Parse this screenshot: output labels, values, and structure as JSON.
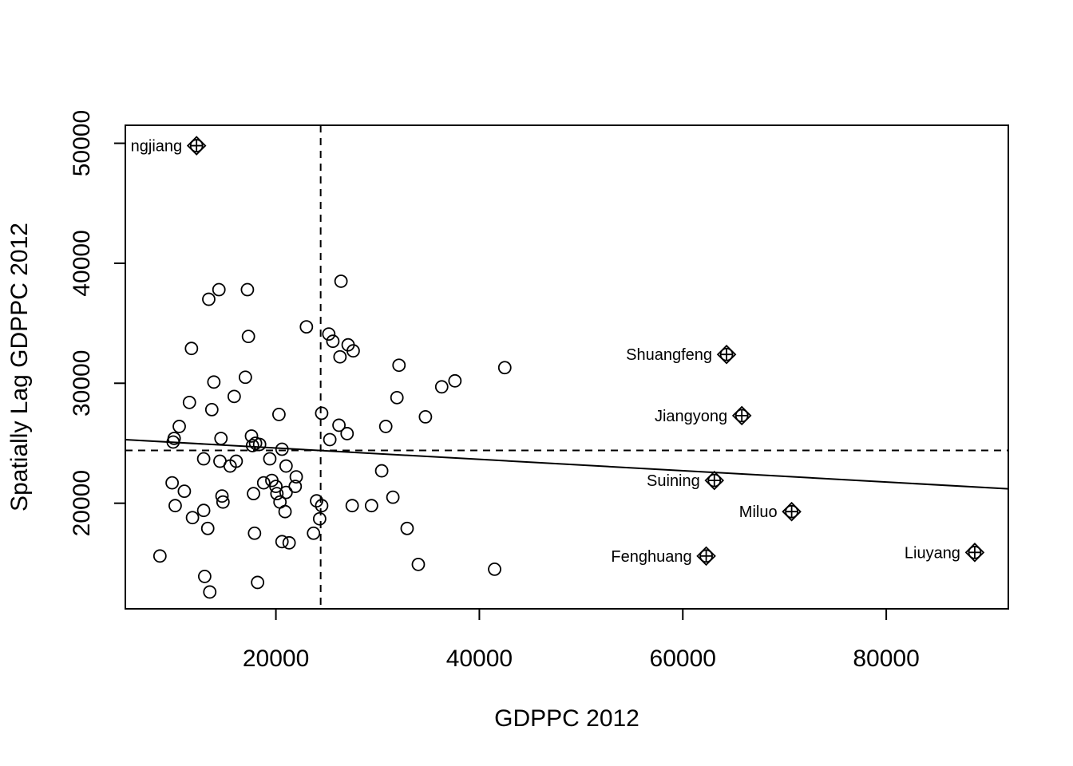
{
  "chart_data": {
    "type": "scatter",
    "xlabel": "GDPPC 2012",
    "ylabel": "Spatially Lag GDPPC 2012",
    "xlim": [
      5200,
      92000
    ],
    "ylim": [
      11200,
      51500
    ],
    "xticks": [
      20000,
      40000,
      60000,
      80000
    ],
    "yticks": [
      20000,
      30000,
      40000,
      50000
    ],
    "xtick_labels": [
      "20000",
      "40000",
      "60000",
      "80000"
    ],
    "ytick_labels": [
      "20000",
      "30000",
      "40000",
      "50000"
    ],
    "grid": false,
    "mean_x": 24400,
    "mean_y": 24400,
    "regression_line": {
      "x": [
        5200,
        92000
      ],
      "y": [
        25300,
        21200
      ]
    },
    "points": [
      [
        8600,
        15600
      ],
      [
        9800,
        21700
      ],
      [
        9900,
        25100
      ],
      [
        10000,
        25400
      ],
      [
        10100,
        19800
      ],
      [
        10500,
        26400
      ],
      [
        11000,
        21000
      ],
      [
        11500,
        28400
      ],
      [
        11700,
        32900
      ],
      [
        11800,
        18800
      ],
      [
        12900,
        23700
      ],
      [
        12900,
        19400
      ],
      [
        13000,
        13900
      ],
      [
        13300,
        17900
      ],
      [
        13400,
        37000
      ],
      [
        13500,
        12600
      ],
      [
        13700,
        27800
      ],
      [
        13900,
        30100
      ],
      [
        14400,
        37800
      ],
      [
        14500,
        23500
      ],
      [
        14600,
        25400
      ],
      [
        14700,
        20600
      ],
      [
        14800,
        20100
      ],
      [
        15500,
        23100
      ],
      [
        15900,
        28900
      ],
      [
        16100,
        23500
      ],
      [
        17000,
        30500
      ],
      [
        17200,
        37800
      ],
      [
        17300,
        33900
      ],
      [
        17600,
        25600
      ],
      [
        17700,
        24800
      ],
      [
        17800,
        20800
      ],
      [
        17900,
        17500
      ],
      [
        18000,
        25000
      ],
      [
        18200,
        13400
      ],
      [
        18400,
        24900
      ],
      [
        18800,
        21700
      ],
      [
        19400,
        23700
      ],
      [
        19600,
        21900
      ],
      [
        20000,
        21400
      ],
      [
        20100,
        20800
      ],
      [
        20300,
        27400
      ],
      [
        20400,
        20100
      ],
      [
        20600,
        24500
      ],
      [
        20600,
        16800
      ],
      [
        20900,
        19300
      ],
      [
        21000,
        20900
      ],
      [
        21000,
        23100
      ],
      [
        21300,
        16700
      ],
      [
        21900,
        21400
      ],
      [
        22000,
        22200
      ],
      [
        23000,
        34700
      ],
      [
        23700,
        17500
      ],
      [
        24000,
        20200
      ],
      [
        24300,
        18700
      ],
      [
        24500,
        27500
      ],
      [
        24500,
        19800
      ],
      [
        25200,
        34100
      ],
      [
        25300,
        25300
      ],
      [
        25600,
        33500
      ],
      [
        26200,
        26500
      ],
      [
        26300,
        32200
      ],
      [
        26400,
        38500
      ],
      [
        27000,
        25800
      ],
      [
        27100,
        33200
      ],
      [
        27500,
        19800
      ],
      [
        27600,
        32700
      ],
      [
        29400,
        19800
      ],
      [
        30400,
        22700
      ],
      [
        30800,
        26400
      ],
      [
        31500,
        20500
      ],
      [
        31900,
        28800
      ],
      [
        32100,
        31500
      ],
      [
        32900,
        17900
      ],
      [
        34000,
        14900
      ],
      [
        34700,
        27200
      ],
      [
        36300,
        29700
      ],
      [
        37600,
        30200
      ],
      [
        41500,
        14500
      ],
      [
        42500,
        31300
      ]
    ],
    "labeled_points": [
      {
        "name": "ngjiang",
        "x": 12200,
        "y": 49800
      },
      {
        "name": "Shuangfeng",
        "x": 64300,
        "y": 32400
      },
      {
        "name": "Jiangyong",
        "x": 65800,
        "y": 27300
      },
      {
        "name": "Suining",
        "x": 63100,
        "y": 21900
      },
      {
        "name": "Miluo",
        "x": 70700,
        "y": 19300
      },
      {
        "name": "Fenghuang",
        "x": 62300,
        "y": 15600
      },
      {
        "name": "Liuyang",
        "x": 88700,
        "y": 15900
      }
    ]
  }
}
